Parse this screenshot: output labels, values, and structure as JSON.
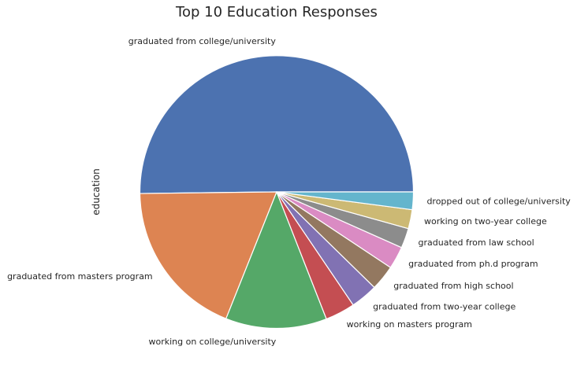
{
  "chart_data": {
    "type": "pie",
    "title": "Top 10 Education Responses",
    "ylabel": "education",
    "xlabel": "",
    "start_angle_deg": 0,
    "direction": "counterclockwise",
    "slices": [
      {
        "label": "graduated from college/university",
        "value": 23959,
        "color": "#4c72b0"
      },
      {
        "label": "graduated from masters program",
        "value": 8961,
        "color": "#dd8452"
      },
      {
        "label": "working on college/university",
        "value": 5712,
        "color": "#55a868"
      },
      {
        "label": "working on masters program",
        "value": 1683,
        "color": "#c44e52"
      },
      {
        "label": "graduated from two-year college",
        "value": 1531,
        "color": "#8172b3"
      },
      {
        "label": "graduated from high school",
        "value": 1428,
        "color": "#937860"
      },
      {
        "label": "graduated from ph.d program",
        "value": 1272,
        "color": "#da8bc3"
      },
      {
        "label": "graduated from law school",
        "value": 1122,
        "color": "#8c8c8c"
      },
      {
        "label": "working on two-year college",
        "value": 1074,
        "color": "#ccb974"
      },
      {
        "label": "dropped out of college/university",
        "value": 995,
        "color": "#64b5cd"
      }
    ]
  }
}
